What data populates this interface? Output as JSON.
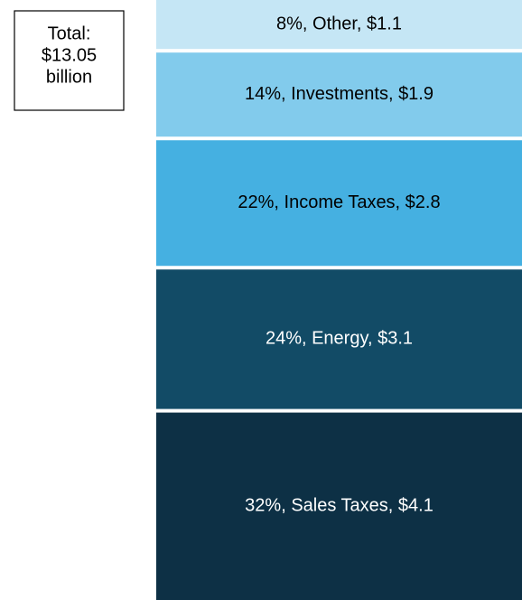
{
  "chart_data": {
    "type": "stacked_bar",
    "values": [
      4.1,
      3.1,
      2.8,
      1.9,
      1.1
    ],
    "value_labels": [
      "32%, Sales Taxes, $4.1",
      "24%, Energy, $3.1",
      "22%, Income Taxes, $2.8",
      "14%, Investments, $1.9",
      "8%, Other, $1.1"
    ],
    "colors": [
      "#0d3045",
      "#124b66",
      "#45b0e1",
      "#82cbec",
      "#c5e6f5"
    ],
    "label_colors": [
      "#ffffff",
      "#ffffff",
      "#000000",
      "#000000",
      "#000000"
    ],
    "ylim": [
      0,
      13
    ],
    "annotation": [
      "Total:",
      "$13.05",
      "billion"
    ]
  }
}
